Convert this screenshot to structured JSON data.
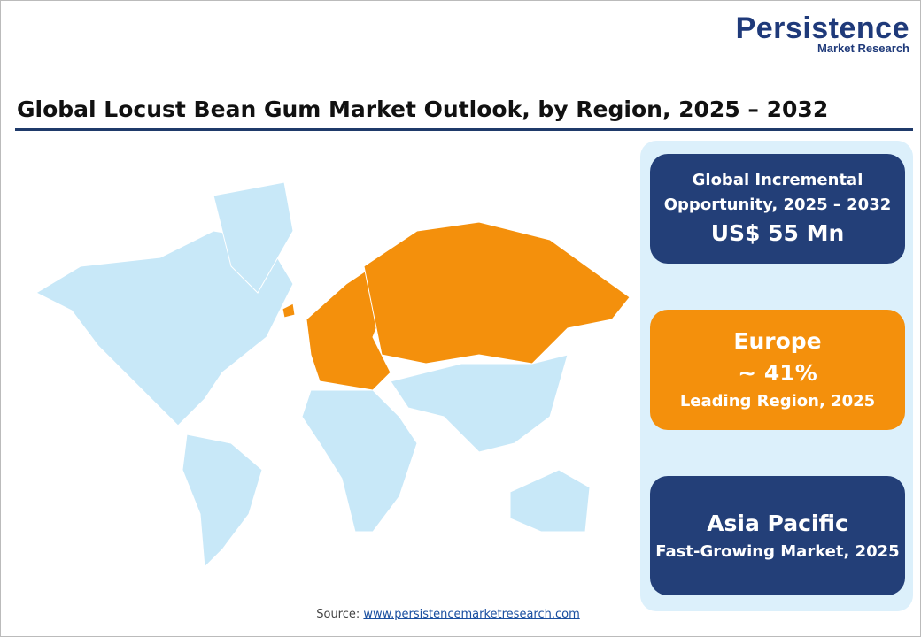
{
  "logo": {
    "name": "Persistence",
    "tagline": "Market Research"
  },
  "title": "Global Locust Bean Gum Market Outlook, by Region, 2025 – 2032",
  "cards": [
    {
      "label": "Global Incremental Opportunity, 2025 – 2032",
      "value": "US$ 55 Mn"
    },
    {
      "region": "Europe",
      "value": "~ 41%",
      "label": "Leading Region, 2025"
    },
    {
      "region": "Asia Pacific",
      "label": "Fast-Growing Market, 2025"
    }
  ],
  "source": {
    "label": "Source:",
    "url": "www.persistencemarketresearch.com"
  }
}
